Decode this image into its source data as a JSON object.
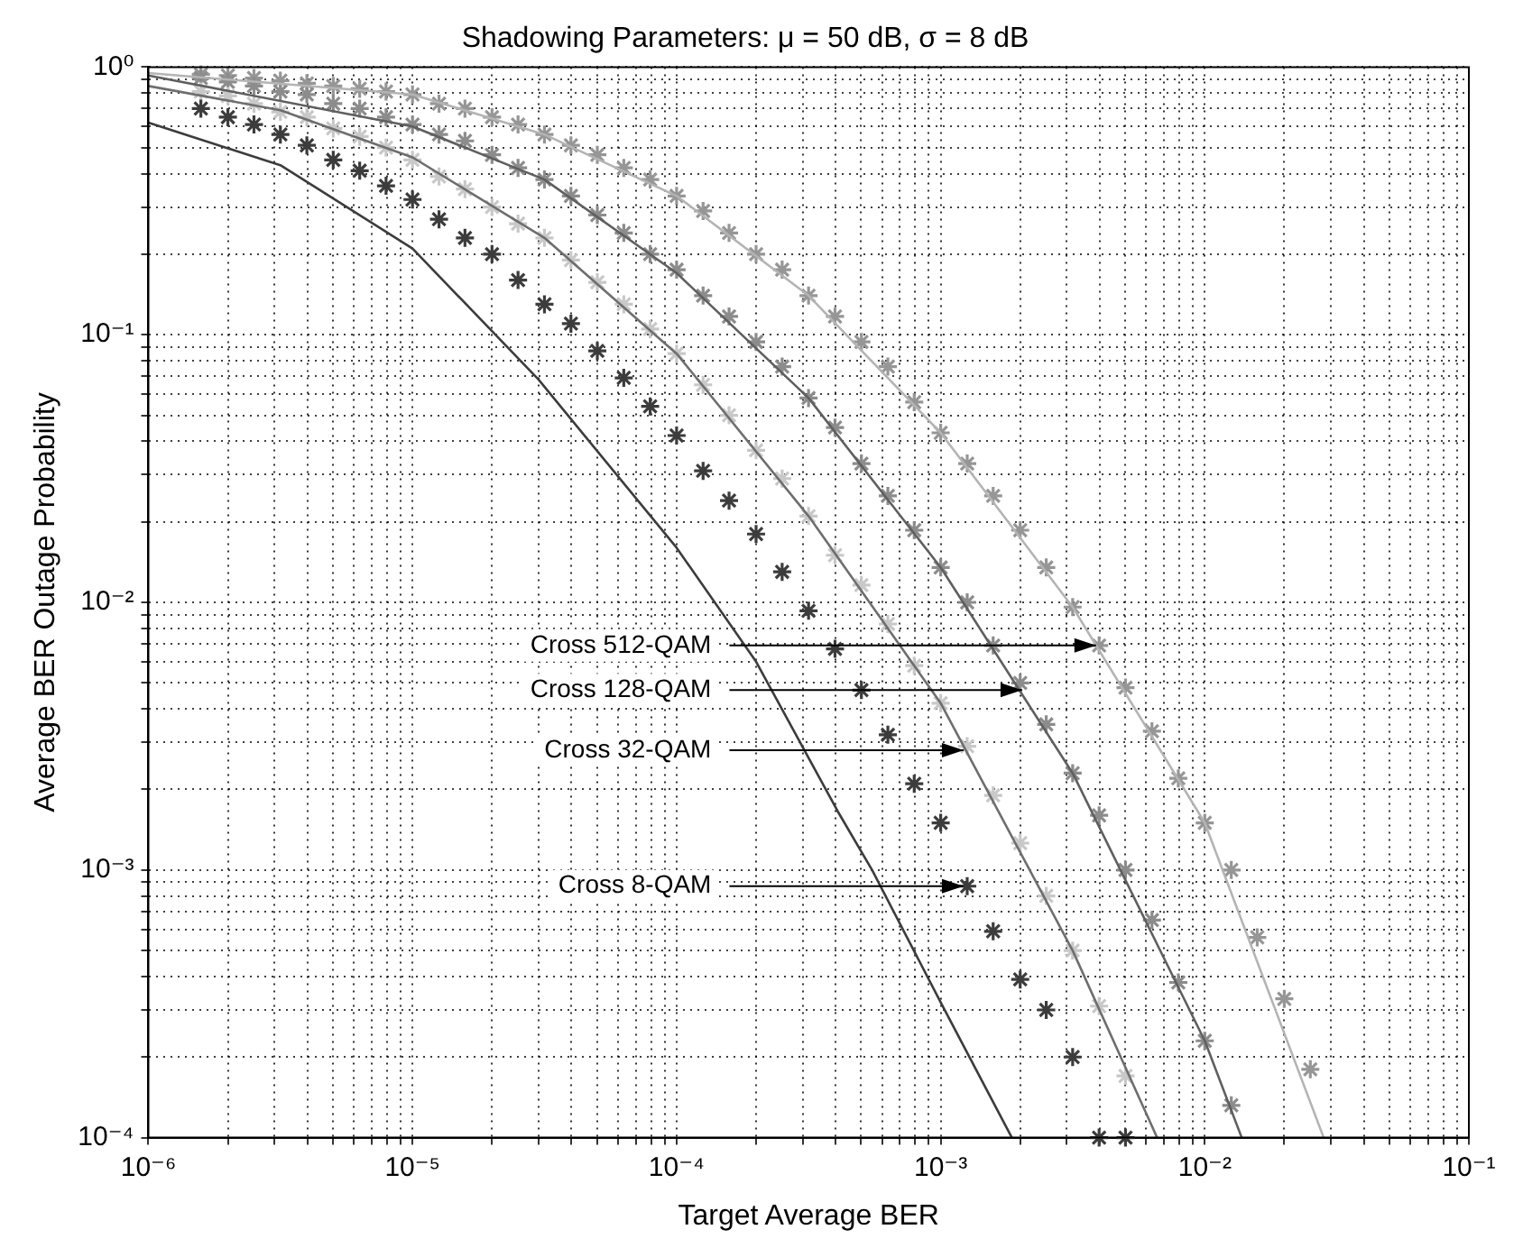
{
  "chart_data": {
    "type": "line",
    "title": "Shadowing Parameters: μ = 50 dB, σ = 8 dB",
    "xlabel": "Target Average BER",
    "ylabel": "Average BER Outage Probability",
    "log": "xy",
    "grid": true,
    "legend": false,
    "xlim": [
      1e-06,
      0.1
    ],
    "ylim": [
      0.0001,
      1
    ],
    "xticks": [
      {
        "value": 1e-06,
        "label": "10⁻⁶"
      },
      {
        "value": 2e-06,
        "label": null
      },
      {
        "value": 3e-06,
        "label": null
      },
      {
        "value": 4e-06,
        "label": null
      },
      {
        "value": 5e-06,
        "label": null
      },
      {
        "value": 6e-06,
        "label": null
      },
      {
        "value": 7e-06,
        "label": null
      },
      {
        "value": 8e-06,
        "label": null
      },
      {
        "value": 9e-06,
        "label": null
      },
      {
        "value": 1e-05,
        "label": "10⁻⁵"
      },
      {
        "value": 2e-05,
        "label": null
      },
      {
        "value": 3e-05,
        "label": null
      },
      {
        "value": 4e-05,
        "label": null
      },
      {
        "value": 5e-05,
        "label": null
      },
      {
        "value": 6e-05,
        "label": null
      },
      {
        "value": 7e-05,
        "label": null
      },
      {
        "value": 8e-05,
        "label": null
      },
      {
        "value": 9e-05,
        "label": null
      },
      {
        "value": 0.0001,
        "label": "10⁻⁴"
      },
      {
        "value": 0.0002,
        "label": null
      },
      {
        "value": 0.0003,
        "label": null
      },
      {
        "value": 0.0004,
        "label": null
      },
      {
        "value": 0.0005,
        "label": null
      },
      {
        "value": 0.0006,
        "label": null
      },
      {
        "value": 0.0007,
        "label": null
      },
      {
        "value": 0.0008,
        "label": null
      },
      {
        "value": 0.0009,
        "label": null
      },
      {
        "value": 0.001,
        "label": "10⁻³"
      },
      {
        "value": 0.002,
        "label": null
      },
      {
        "value": 0.003,
        "label": null
      },
      {
        "value": 0.004,
        "label": null
      },
      {
        "value": 0.005,
        "label": null
      },
      {
        "value": 0.006,
        "label": null
      },
      {
        "value": 0.007,
        "label": null
      },
      {
        "value": 0.008,
        "label": null
      },
      {
        "value": 0.009,
        "label": null
      },
      {
        "value": 0.01,
        "label": "10⁻²"
      },
      {
        "value": 0.02,
        "label": null
      },
      {
        "value": 0.03,
        "label": null
      },
      {
        "value": 0.04,
        "label": null
      },
      {
        "value": 0.05,
        "label": null
      },
      {
        "value": 0.06,
        "label": null
      },
      {
        "value": 0.07,
        "label": null
      },
      {
        "value": 0.08,
        "label": null
      },
      {
        "value": 0.09,
        "label": null
      },
      {
        "value": 0.1,
        "label": "10⁻¹"
      }
    ],
    "yticks": [
      {
        "value": 0.0001,
        "label": "10⁻⁴"
      },
      {
        "value": 0.0002,
        "label": null
      },
      {
        "value": 0.0003,
        "label": null
      },
      {
        "value": 0.0004,
        "label": null
      },
      {
        "value": 0.0005,
        "label": null
      },
      {
        "value": 0.0006,
        "label": null
      },
      {
        "value": 0.0007,
        "label": null
      },
      {
        "value": 0.0008,
        "label": null
      },
      {
        "value": 0.0009,
        "label": null
      },
      {
        "value": 0.001,
        "label": "10⁻³"
      },
      {
        "value": 0.002,
        "label": null
      },
      {
        "value": 0.003,
        "label": null
      },
      {
        "value": 0.004,
        "label": null
      },
      {
        "value": 0.005,
        "label": null
      },
      {
        "value": 0.006,
        "label": null
      },
      {
        "value": 0.007,
        "label": null
      },
      {
        "value": 0.008,
        "label": null
      },
      {
        "value": 0.009,
        "label": null
      },
      {
        "value": 0.01,
        "label": "10⁻²"
      },
      {
        "value": 0.02,
        "label": null
      },
      {
        "value": 0.03,
        "label": null
      },
      {
        "value": 0.04,
        "label": null
      },
      {
        "value": 0.05,
        "label": null
      },
      {
        "value": 0.06,
        "label": null
      },
      {
        "value": 0.07,
        "label": null
      },
      {
        "value": 0.08,
        "label": null
      },
      {
        "value": 0.09,
        "label": null
      },
      {
        "value": 0.1,
        "label": "10⁻¹"
      },
      {
        "value": 0.2,
        "label": null
      },
      {
        "value": 0.3,
        "label": null
      },
      {
        "value": 0.4,
        "label": null
      },
      {
        "value": 0.5,
        "label": null
      },
      {
        "value": 0.6,
        "label": null
      },
      {
        "value": 0.7,
        "label": null
      },
      {
        "value": 0.8,
        "label": null
      },
      {
        "value": 0.9,
        "label": null
      },
      {
        "value": 1,
        "label": "10⁰"
      }
    ],
    "x": [
      1.58e-06,
      2e-06,
      2.51e-06,
      3.16e-06,
      3.98e-06,
      5.01e-06,
      6.31e-06,
      7.94e-06,
      1e-05,
      1.26e-05,
      1.58e-05,
      2e-05,
      2.51e-05,
      3.16e-05,
      3.98e-05,
      5.01e-05,
      6.31e-05,
      7.94e-05,
      0.0001,
      0.000126,
      0.000158,
      0.0002,
      0.000251,
      0.000316,
      0.000398,
      0.000501,
      0.000631,
      0.000794,
      0.001,
      0.00126,
      0.00158,
      0.002,
      0.00251,
      0.00316,
      0.00398,
      0.00501,
      0.00631,
      0.00794,
      0.01,
      0.0126,
      0.0158,
      0.02,
      0.0251
    ],
    "series": [
      {
        "marker": "none",
        "color": "#3c3c3c",
        "x": [
          1e-06,
          3.16e-06,
          1e-05,
          3e-05,
          0.0001,
          0.0002,
          0.000407,
          0.00055,
          0.001,
          0.00186
        ],
        "values": [
          0.62,
          0.43,
          0.21,
          0.068,
          0.016,
          0.006,
          0.00166,
          0.001,
          0.00032,
          0.0001
        ]
      },
      {
        "marker": "none",
        "color": "#6e6e6e",
        "x": [
          1e-06,
          3.16e-06,
          1e-05,
          3.16e-05,
          0.0001,
          0.000316,
          0.001,
          0.00316,
          0.0066
        ],
        "values": [
          0.85,
          0.69,
          0.46,
          0.23,
          0.085,
          0.021,
          0.0042,
          0.0005,
          0.0001
        ]
      },
      {
        "marker": "none",
        "color": "#5f5f5f",
        "x": [
          1e-06,
          1e-05,
          3.16e-05,
          0.0001,
          0.000316,
          0.001,
          0.00316,
          0.01,
          0.0138
        ],
        "values": [
          0.93,
          0.6,
          0.38,
          0.17,
          0.058,
          0.0135,
          0.0023,
          0.00023,
          0.0001
        ]
      },
      {
        "marker": "none",
        "color": "#b4b4b4",
        "x": [
          1e-06,
          1e-05,
          3.16e-05,
          0.0001,
          0.000316,
          0.001,
          0.00316,
          0.01,
          0.0282
        ],
        "values": [
          0.95,
          0.79,
          0.56,
          0.33,
          0.14,
          0.043,
          0.0096,
          0.0015,
          0.0001
        ]
      },
      {
        "type": "scatter",
        "marker": "cross",
        "color": "#3c3c3c",
        "values": [
          0.7,
          0.65,
          0.61,
          0.56,
          0.51,
          0.45,
          0.41,
          0.36,
          0.32,
          0.27,
          0.23,
          0.2,
          0.16,
          0.13,
          0.11,
          0.087,
          0.069,
          0.054,
          0.042,
          0.031,
          0.024,
          0.018,
          0.013,
          0.0093,
          0.0067,
          0.0047,
          0.0032,
          0.0021,
          0.0015,
          0.00087,
          0.00059,
          0.00039,
          0.0003,
          0.0002,
          0.0001,
          0.0001,
          null,
          null,
          null,
          null,
          null,
          null,
          null
        ]
      },
      {
        "type": "scatter",
        "marker": "cross",
        "color": "#c8c8c8",
        "values": [
          0.81,
          0.78,
          0.73,
          0.68,
          0.65,
          0.59,
          0.55,
          0.5,
          0.45,
          0.39,
          0.35,
          0.3,
          0.26,
          0.23,
          0.19,
          0.157,
          0.13,
          0.105,
          0.085,
          0.065,
          0.05,
          0.037,
          0.029,
          0.021,
          0.015,
          0.0116,
          0.0083,
          0.0058,
          0.0042,
          0.0029,
          0.0019,
          0.00126,
          0.0008,
          0.0005,
          0.00031,
          0.00017,
          null,
          null,
          null,
          null,
          null,
          null,
          null
        ]
      },
      {
        "type": "scatter",
        "marker": "cross",
        "color": "#8c8c8c",
        "values": [
          0.91,
          0.88,
          0.85,
          0.81,
          0.79,
          0.73,
          0.7,
          0.65,
          0.61,
          0.56,
          0.53,
          0.47,
          0.42,
          0.38,
          0.33,
          0.28,
          0.24,
          0.2,
          0.175,
          0.14,
          0.117,
          0.094,
          0.076,
          0.058,
          0.045,
          0.033,
          0.025,
          0.0186,
          0.0135,
          0.01,
          0.0069,
          0.005,
          0.0035,
          0.0023,
          0.0016,
          0.001,
          0.00065,
          0.00038,
          0.00023,
          0.000132,
          null,
          null,
          null
        ]
      },
      {
        "type": "scatter",
        "marker": "cross",
        "color": "#969696",
        "values": [
          0.94,
          0.93,
          0.91,
          0.89,
          0.87,
          0.85,
          0.83,
          0.81,
          0.79,
          0.73,
          0.7,
          0.65,
          0.61,
          0.56,
          0.51,
          0.47,
          0.42,
          0.38,
          0.33,
          0.29,
          0.24,
          0.2,
          0.175,
          0.14,
          0.117,
          0.094,
          0.076,
          0.056,
          0.043,
          0.033,
          0.025,
          0.0186,
          0.0135,
          0.0096,
          0.0069,
          0.0048,
          0.0033,
          0.0022,
          0.0015,
          0.001,
          0.00056,
          0.00033,
          0.00018
        ]
      }
    ],
    "annotations": [
      {
        "text": "Cross 512-QAM",
        "x": 0.004,
        "y": 0.0069
      },
      {
        "text": "Cross 128-QAM",
        "x": 0.0021,
        "y": 0.0047
      },
      {
        "text": "Cross 32-QAM",
        "x": 0.00126,
        "y": 0.0028
      },
      {
        "text": "Cross 8-QAM",
        "x": 0.00126,
        "y": 0.00087
      }
    ]
  }
}
